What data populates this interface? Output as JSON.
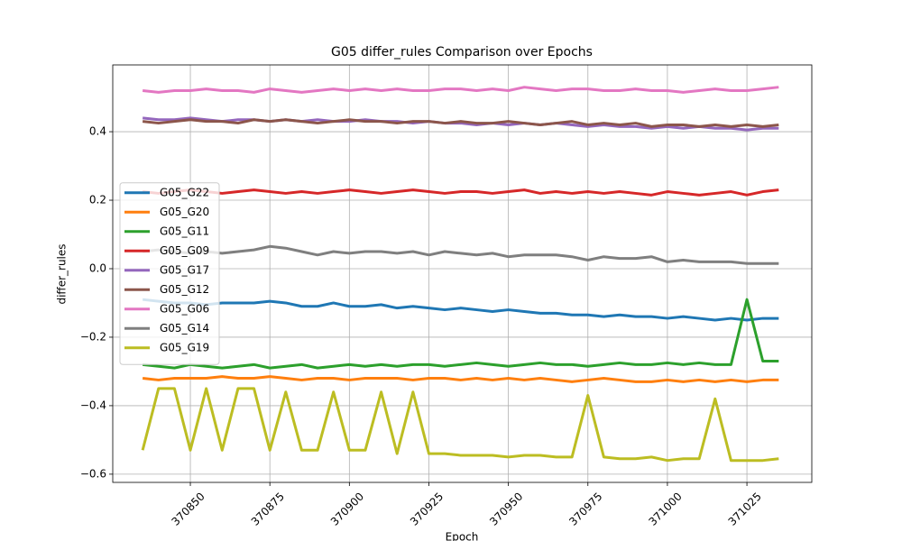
{
  "chart_data": {
    "type": "line",
    "title": "G05 differ_rules Comparison over Epochs",
    "xlabel": "Epoch",
    "ylabel": "differ_rules",
    "x": [
      370835,
      370840,
      370845,
      370850,
      370855,
      370860,
      370865,
      370870,
      370875,
      370880,
      370885,
      370890,
      370895,
      370900,
      370905,
      370910,
      370915,
      370920,
      370925,
      370930,
      370935,
      370940,
      370945,
      370950,
      370955,
      370960,
      370965,
      370970,
      370975,
      370980,
      370985,
      370990,
      370995,
      371000,
      371005,
      371010,
      371015,
      371020,
      371025,
      371030,
      371035
    ],
    "xlim": [
      370825.6,
      371045.4
    ],
    "xticks": [
      370850,
      370875,
      370900,
      370925,
      370950,
      370975,
      371000,
      371025
    ],
    "ylim": [
      -0.624,
      0.595
    ],
    "yticks": [
      {
        "value": -0.6,
        "label": "−0.6"
      },
      {
        "value": -0.4,
        "label": "−0.4"
      },
      {
        "value": -0.2,
        "label": "−0.2"
      },
      {
        "value": 0,
        "label": "0.0"
      },
      0.2,
      0.4
    ],
    "grid": true,
    "legend": "center left",
    "series": [
      {
        "name": "G05_G22",
        "color": "#1f77b4",
        "values": [
          -0.09,
          -0.095,
          -0.1,
          -0.1,
          -0.105,
          -0.1,
          -0.1,
          -0.1,
          -0.095,
          -0.1,
          -0.11,
          -0.11,
          -0.1,
          -0.11,
          -0.11,
          -0.105,
          -0.115,
          -0.11,
          -0.115,
          -0.12,
          -0.115,
          -0.12,
          -0.125,
          -0.12,
          -0.125,
          -0.13,
          -0.13,
          -0.135,
          -0.135,
          -0.14,
          -0.135,
          -0.14,
          -0.14,
          -0.145,
          -0.14,
          -0.145,
          -0.15,
          -0.145,
          -0.15,
          -0.145,
          -0.145
        ]
      },
      {
        "name": "G05_G20",
        "color": "#ff7f0e",
        "values": [
          -0.32,
          -0.325,
          -0.32,
          -0.32,
          -0.32,
          -0.315,
          -0.32,
          -0.32,
          -0.315,
          -0.32,
          -0.325,
          -0.32,
          -0.32,
          -0.325,
          -0.32,
          -0.32,
          -0.32,
          -0.325,
          -0.32,
          -0.32,
          -0.325,
          -0.32,
          -0.325,
          -0.32,
          -0.325,
          -0.32,
          -0.325,
          -0.33,
          -0.325,
          -0.32,
          -0.325,
          -0.33,
          -0.33,
          -0.325,
          -0.33,
          -0.325,
          -0.33,
          -0.325,
          -0.33,
          -0.325,
          -0.325
        ]
      },
      {
        "name": "G05_G11",
        "color": "#2ca02c",
        "values": [
          -0.28,
          -0.285,
          -0.29,
          -0.28,
          -0.285,
          -0.29,
          -0.285,
          -0.28,
          -0.29,
          -0.285,
          -0.28,
          -0.29,
          -0.285,
          -0.28,
          -0.285,
          -0.28,
          -0.285,
          -0.28,
          -0.28,
          -0.285,
          -0.28,
          -0.275,
          -0.28,
          -0.285,
          -0.28,
          -0.275,
          -0.28,
          -0.28,
          -0.285,
          -0.28,
          -0.275,
          -0.28,
          -0.28,
          -0.275,
          -0.28,
          -0.275,
          -0.28,
          -0.28,
          -0.09,
          -0.27,
          -0.27
        ]
      },
      {
        "name": "G05_G09",
        "color": "#d62728",
        "values": [
          0.225,
          0.22,
          0.225,
          0.23,
          0.225,
          0.22,
          0.225,
          0.23,
          0.225,
          0.22,
          0.225,
          0.22,
          0.225,
          0.23,
          0.225,
          0.22,
          0.225,
          0.23,
          0.225,
          0.22,
          0.225,
          0.225,
          0.22,
          0.225,
          0.23,
          0.22,
          0.225,
          0.22,
          0.225,
          0.22,
          0.225,
          0.22,
          0.215,
          0.225,
          0.22,
          0.215,
          0.22,
          0.225,
          0.215,
          0.225,
          0.23
        ]
      },
      {
        "name": "G05_G17",
        "color": "#9467bd",
        "values": [
          0.44,
          0.435,
          0.435,
          0.44,
          0.435,
          0.43,
          0.435,
          0.435,
          0.43,
          0.435,
          0.43,
          0.435,
          0.43,
          0.43,
          0.435,
          0.43,
          0.43,
          0.425,
          0.43,
          0.425,
          0.425,
          0.42,
          0.425,
          0.42,
          0.425,
          0.42,
          0.425,
          0.42,
          0.415,
          0.42,
          0.415,
          0.415,
          0.41,
          0.415,
          0.41,
          0.415,
          0.41,
          0.41,
          0.405,
          0.41,
          0.41
        ]
      },
      {
        "name": "G05_G12",
        "color": "#8c564b",
        "values": [
          0.43,
          0.425,
          0.43,
          0.435,
          0.43,
          0.43,
          0.425,
          0.435,
          0.43,
          0.435,
          0.43,
          0.425,
          0.43,
          0.435,
          0.43,
          0.43,
          0.425,
          0.43,
          0.43,
          0.425,
          0.43,
          0.425,
          0.425,
          0.43,
          0.425,
          0.42,
          0.425,
          0.43,
          0.42,
          0.425,
          0.42,
          0.425,
          0.415,
          0.42,
          0.42,
          0.415,
          0.42,
          0.415,
          0.42,
          0.415,
          0.42
        ]
      },
      {
        "name": "G05_G06",
        "color": "#e377c2",
        "values": [
          0.52,
          0.515,
          0.52,
          0.52,
          0.525,
          0.52,
          0.52,
          0.515,
          0.525,
          0.52,
          0.515,
          0.52,
          0.525,
          0.52,
          0.525,
          0.52,
          0.525,
          0.52,
          0.52,
          0.525,
          0.525,
          0.52,
          0.525,
          0.52,
          0.53,
          0.525,
          0.52,
          0.525,
          0.525,
          0.52,
          0.52,
          0.525,
          0.52,
          0.52,
          0.515,
          0.52,
          0.525,
          0.52,
          0.52,
          0.525,
          0.53
        ]
      },
      {
        "name": "G05_G14",
        "color": "#7f7f7f",
        "values": [
          0.05,
          0.055,
          0.05,
          0.045,
          0.05,
          0.045,
          0.05,
          0.055,
          0.065,
          0.06,
          0.05,
          0.04,
          0.05,
          0.045,
          0.05,
          0.05,
          0.045,
          0.05,
          0.04,
          0.05,
          0.045,
          0.04,
          0.045,
          0.035,
          0.04,
          0.04,
          0.04,
          0.035,
          0.025,
          0.035,
          0.03,
          0.03,
          0.035,
          0.02,
          0.025,
          0.02,
          0.02,
          0.02,
          0.015,
          0.015,
          0.015
        ]
      },
      {
        "name": "G05_G19",
        "color": "#bcbd22",
        "values": [
          -0.53,
          -0.35,
          -0.35,
          -0.53,
          -0.35,
          -0.53,
          -0.35,
          -0.35,
          -0.53,
          -0.36,
          -0.53,
          -0.53,
          -0.36,
          -0.53,
          -0.53,
          -0.36,
          -0.54,
          -0.36,
          -0.54,
          -0.54,
          -0.545,
          -0.545,
          -0.545,
          -0.55,
          -0.545,
          -0.545,
          -0.55,
          -0.55,
          -0.37,
          -0.55,
          -0.555,
          -0.555,
          -0.55,
          -0.56,
          -0.555,
          -0.555,
          -0.38,
          -0.56,
          -0.56,
          -0.56,
          -0.555
        ]
      }
    ]
  }
}
